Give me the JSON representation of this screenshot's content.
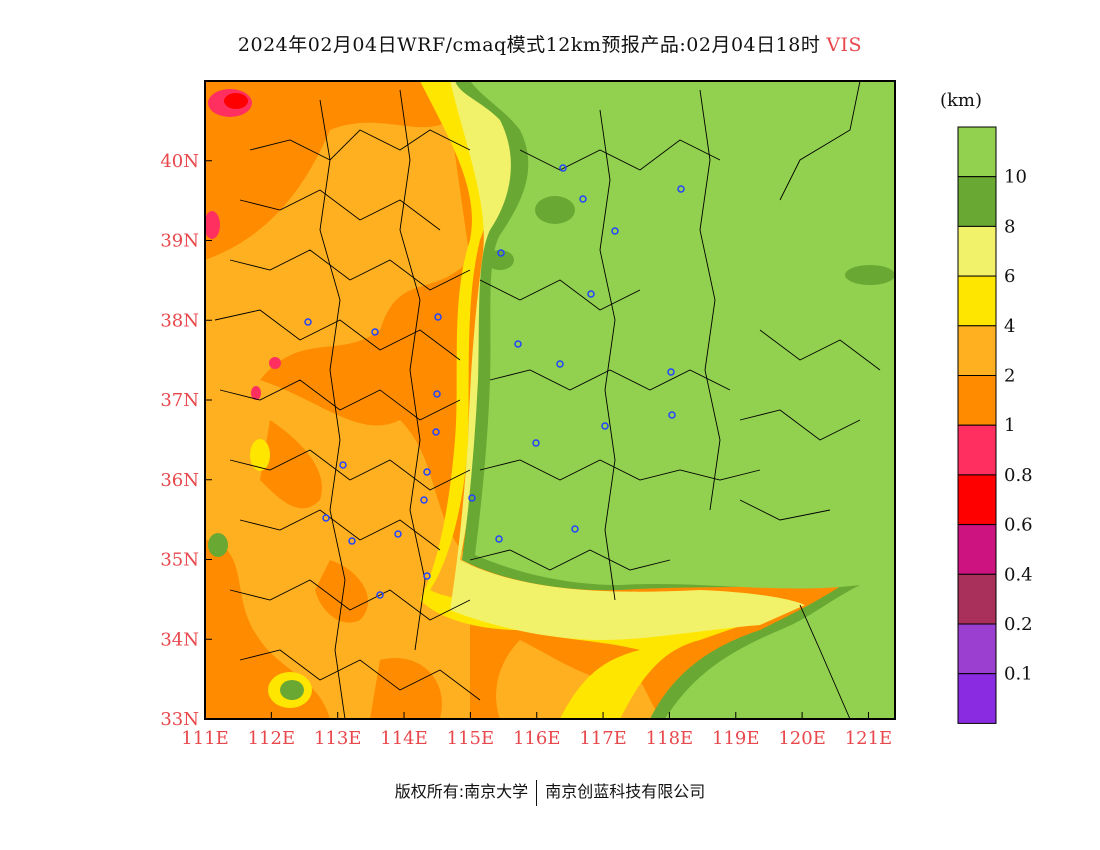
{
  "title": {
    "main": "2024年02月04日WRF/cmaq模式12km预报产品:02月04日18时",
    "variable": "VIS"
  },
  "map": {
    "lon_ticks": [
      "111E",
      "112E",
      "113E",
      "114E",
      "115E",
      "116E",
      "117E",
      "118E",
      "119E",
      "120E",
      "121E"
    ],
    "lat_ticks": [
      "33N",
      "34N",
      "35N",
      "36N",
      "37N",
      "38N",
      "39N",
      "40N"
    ],
    "lon_range": [
      111,
      121.4
    ],
    "lat_range": [
      33,
      41
    ]
  },
  "legend": {
    "unit": "(km)",
    "labels": [
      "10",
      "8",
      "6",
      "4",
      "2",
      "1",
      "0.8",
      "0.6",
      "0.4",
      "0.2",
      "0.1"
    ],
    "colors": [
      "#92d050",
      "#6aa834",
      "#f2f26a",
      "#ffe600",
      "#ffb020",
      "#ff8c00",
      "#ff3060",
      "#ff0000",
      "#cc1380",
      "#a8305a",
      "#9b3fd1",
      "#8a2be2"
    ]
  },
  "footer": {
    "copyright": "版权所有:南京大学",
    "company": "南京创蓝科技有限公司"
  }
}
